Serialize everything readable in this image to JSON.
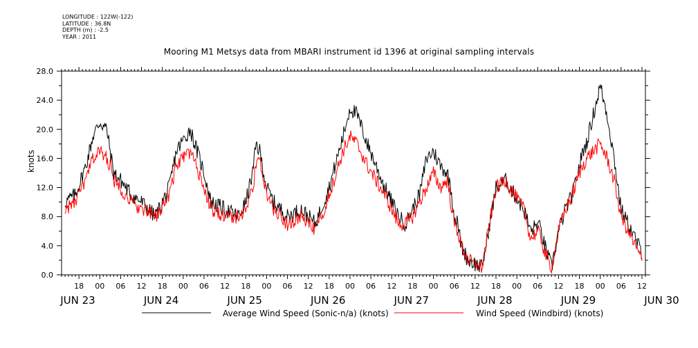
{
  "header": {
    "longitude": "LONGITUDE : 122W(-122)",
    "latitude": "LATITUDE : 36.8N",
    "depth": "DEPTH (m) : -2.5",
    "year": "YEAR : 2011"
  },
  "chart_data": {
    "type": "line",
    "title": "Mooring M1 Metsys data from MBARI instrument id 1396 at original sampling intervals",
    "xlabel": "",
    "ylabel": "knots",
    "ylim": [
      0,
      28
    ],
    "yticks": [
      "0.0",
      "4.0",
      "8.0",
      "12.0",
      "16.0",
      "20.0",
      "24.0",
      "28.0"
    ],
    "xlim_hours": [
      13,
      181
    ],
    "x_unit": "hours from JUN 23 00:00",
    "hour_ticks": [
      "18",
      "00",
      "06",
      "12",
      "18",
      "00",
      "06",
      "12",
      "18",
      "00",
      "06",
      "12",
      "18",
      "00",
      "06",
      "12",
      "18",
      "00",
      "06",
      "12",
      "18",
      "00",
      "06",
      "12",
      "18",
      "00",
      "06",
      "12",
      "18",
      "00",
      "06",
      "12"
    ],
    "date_labels": [
      "JUN 23",
      "JUN 24",
      "JUN 25",
      "JUN 26",
      "JUN 27",
      "JUN 28",
      "JUN 29",
      "JUN 30"
    ],
    "grid": false,
    "legend": "bottom",
    "series": [
      {
        "name": "Average Wind Speed (Sonic-n/a) (knots)",
        "color": "#000000",
        "x": [
          14,
          17,
          20,
          22,
          24,
          26,
          27,
          28,
          30,
          33,
          36,
          40,
          44,
          46,
          50,
          54,
          56,
          60,
          64,
          66,
          68,
          69,
          70,
          72,
          74,
          78,
          82,
          86,
          90,
          94,
          96,
          98,
          101,
          106,
          110,
          112,
          114,
          116,
          118,
          120,
          122,
          124,
          125,
          126,
          127,
          128,
          130,
          134,
          138,
          141,
          142,
          146,
          148,
          150,
          151,
          152,
          154,
          156,
          158,
          160,
          162,
          163,
          164,
          168,
          170,
          172,
          174,
          176,
          180
        ],
        "y": [
          10,
          11,
          15,
          19,
          21,
          20,
          17,
          14,
          13,
          11,
          10,
          8,
          12,
          17,
          20,
          14,
          10,
          9,
          8,
          10,
          14,
          18,
          17,
          12,
          10,
          8,
          9,
          7,
          12,
          19,
          23,
          22,
          18,
          12,
          8,
          7,
          9,
          11,
          16,
          17,
          15,
          14,
          12,
          8,
          7,
          4,
          2,
          1,
          12,
          13,
          12,
          9,
          6,
          7,
          6,
          4,
          1,
          6,
          9,
          11,
          15,
          17,
          18,
          26,
          22,
          16,
          9,
          7,
          3
        ],
        "jitter": 1.1
      },
      {
        "name": "Wind Speed (Windbird) (knots)",
        "color": "#ff0000",
        "x": [
          14,
          17,
          20,
          22,
          24,
          26,
          27,
          28,
          30,
          33,
          36,
          40,
          44,
          46,
          50,
          54,
          56,
          60,
          64,
          66,
          68,
          69,
          70,
          72,
          74,
          78,
          82,
          86,
          90,
          94,
          96,
          98,
          101,
          106,
          110,
          112,
          114,
          116,
          118,
          120,
          122,
          124,
          125,
          126,
          127,
          128,
          130,
          134,
          138,
          141,
          142,
          146,
          148,
          150,
          151,
          152,
          154,
          156,
          158,
          160,
          162,
          163,
          164,
          168,
          170,
          172,
          174,
          176,
          180
        ],
        "y": [
          9,
          10,
          13,
          16,
          17,
          16,
          15,
          13,
          12,
          10,
          9,
          8,
          11,
          15,
          17,
          12,
          9,
          8,
          8,
          9,
          12,
          15,
          16,
          11,
          9,
          7,
          8,
          6,
          11,
          17,
          19,
          18,
          15,
          11,
          7,
          7,
          8,
          10,
          12,
          14,
          12,
          13,
          10,
          7,
          6,
          4,
          2,
          1,
          12,
          13,
          12,
          9,
          5,
          6,
          5,
          3,
          1,
          6,
          9,
          11,
          14,
          15,
          16,
          18,
          16,
          13,
          8,
          6,
          2
        ],
        "jitter": 1.0
      }
    ]
  }
}
